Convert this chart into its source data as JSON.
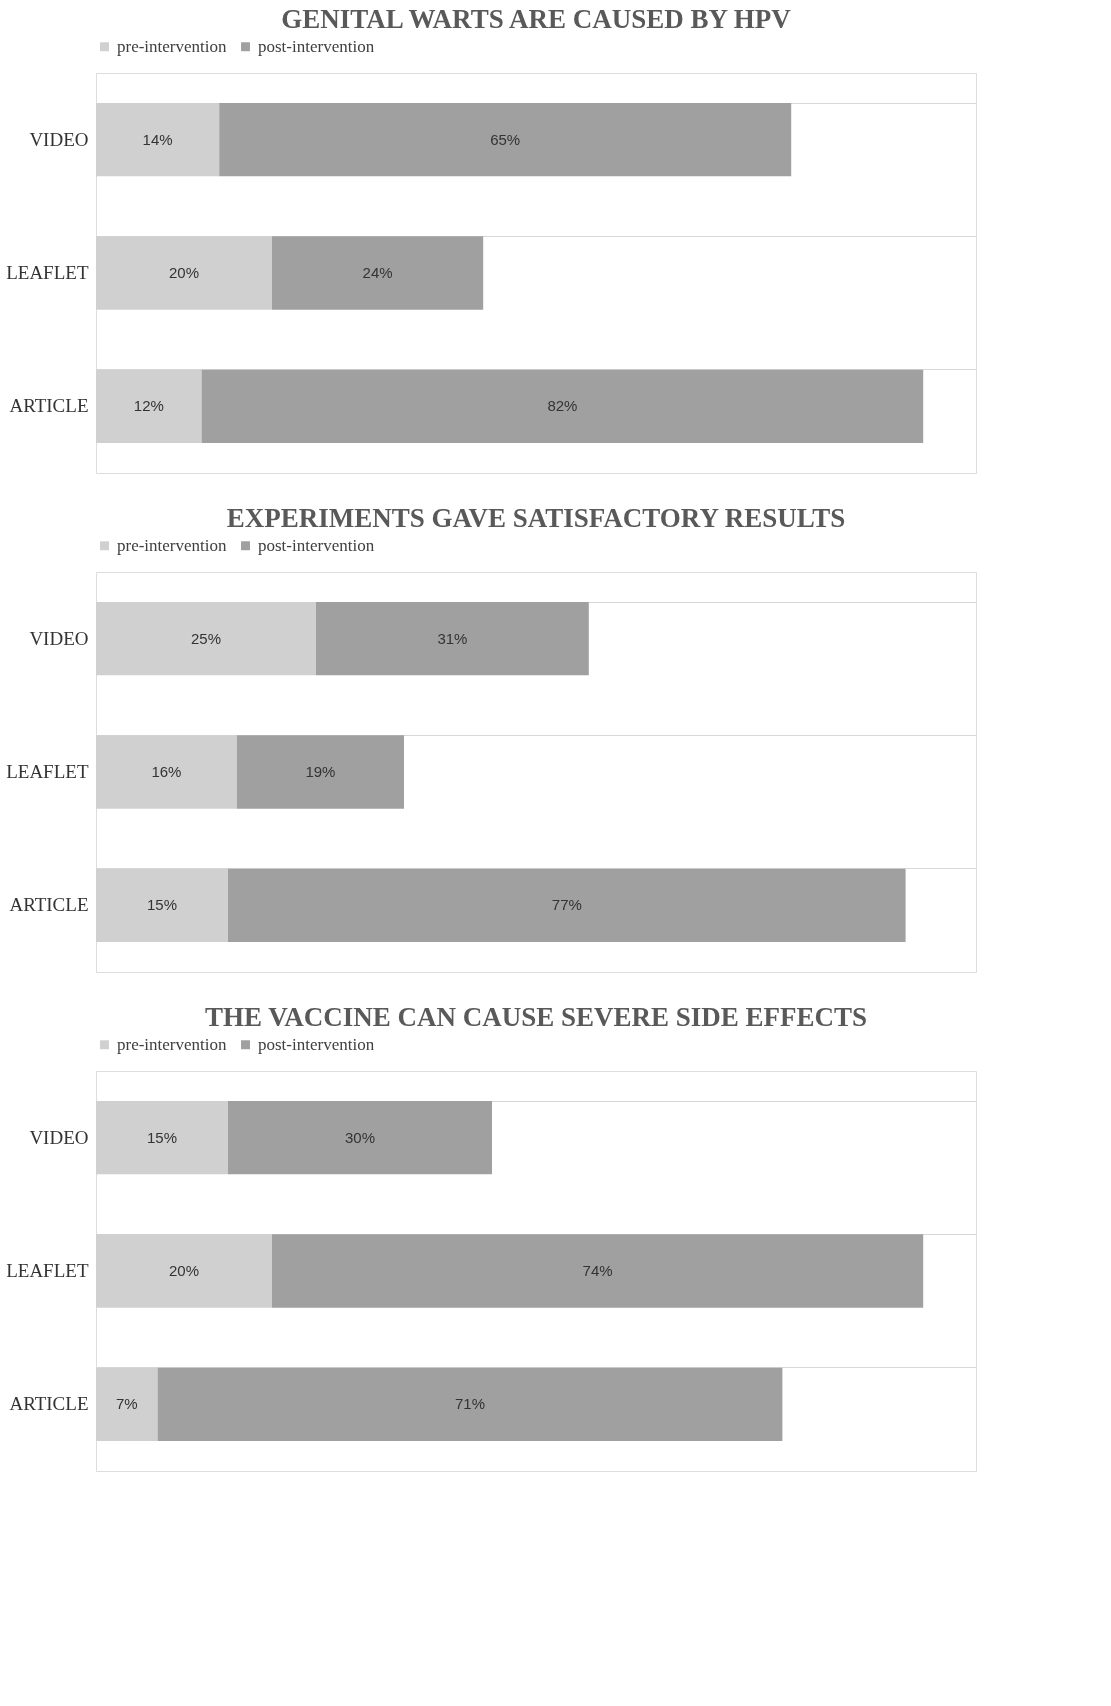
{
  "chart_data": [
    {
      "type": "bar",
      "orientation": "horizontal",
      "stacked": true,
      "title": "GENITAL WARTS ARE CAUSED BY HPV",
      "categories": [
        "VIDEO",
        "LEAFLET",
        "ARTICLE"
      ],
      "legend": "top",
      "grid": "y",
      "series": [
        {
          "name": "pre-intervention",
          "color": "#d0d0d0",
          "values": [
            14,
            20,
            12
          ],
          "value_labels": [
            "14%",
            "20%",
            "12%"
          ]
        },
        {
          "name": "post-intervention",
          "color": "#a0a0a0",
          "values": [
            65,
            24,
            82
          ],
          "value_labels": [
            "65%",
            "24%",
            "82%"
          ]
        }
      ]
    },
    {
      "type": "bar",
      "orientation": "horizontal",
      "stacked": true,
      "title": "EXPERIMENTS GAVE SATISFACTORY RESULTS",
      "categories": [
        "VIDEO",
        "LEAFLET",
        "ARTICLE"
      ],
      "legend": "top",
      "grid": "y",
      "series": [
        {
          "name": "pre-intervention",
          "color": "#d0d0d0",
          "values": [
            25,
            16,
            15
          ],
          "value_labels": [
            "25%",
            "16%",
            "15%"
          ]
        },
        {
          "name": "post-intervention",
          "color": "#a0a0a0",
          "values": [
            31,
            19,
            77
          ],
          "value_labels": [
            "31%",
            "19%",
            "77%"
          ]
        }
      ]
    },
    {
      "type": "bar",
      "orientation": "horizontal",
      "stacked": true,
      "title": "THE VACCINE CAN CAUSE SEVERE SIDE EFFECTS",
      "categories": [
        "VIDEO",
        "LEAFLET",
        "ARTICLE"
      ],
      "legend": "top",
      "grid": "y",
      "series": [
        {
          "name": "pre-intervention",
          "color": "#d0d0d0",
          "values": [
            15,
            20,
            7
          ],
          "value_labels": [
            "15%",
            "20%",
            "7%"
          ]
        },
        {
          "name": "post-intervention",
          "color": "#a0a0a0",
          "values": [
            30,
            74,
            71
          ],
          "value_labels": [
            "30%",
            "74%",
            "71%"
          ]
        }
      ]
    }
  ]
}
